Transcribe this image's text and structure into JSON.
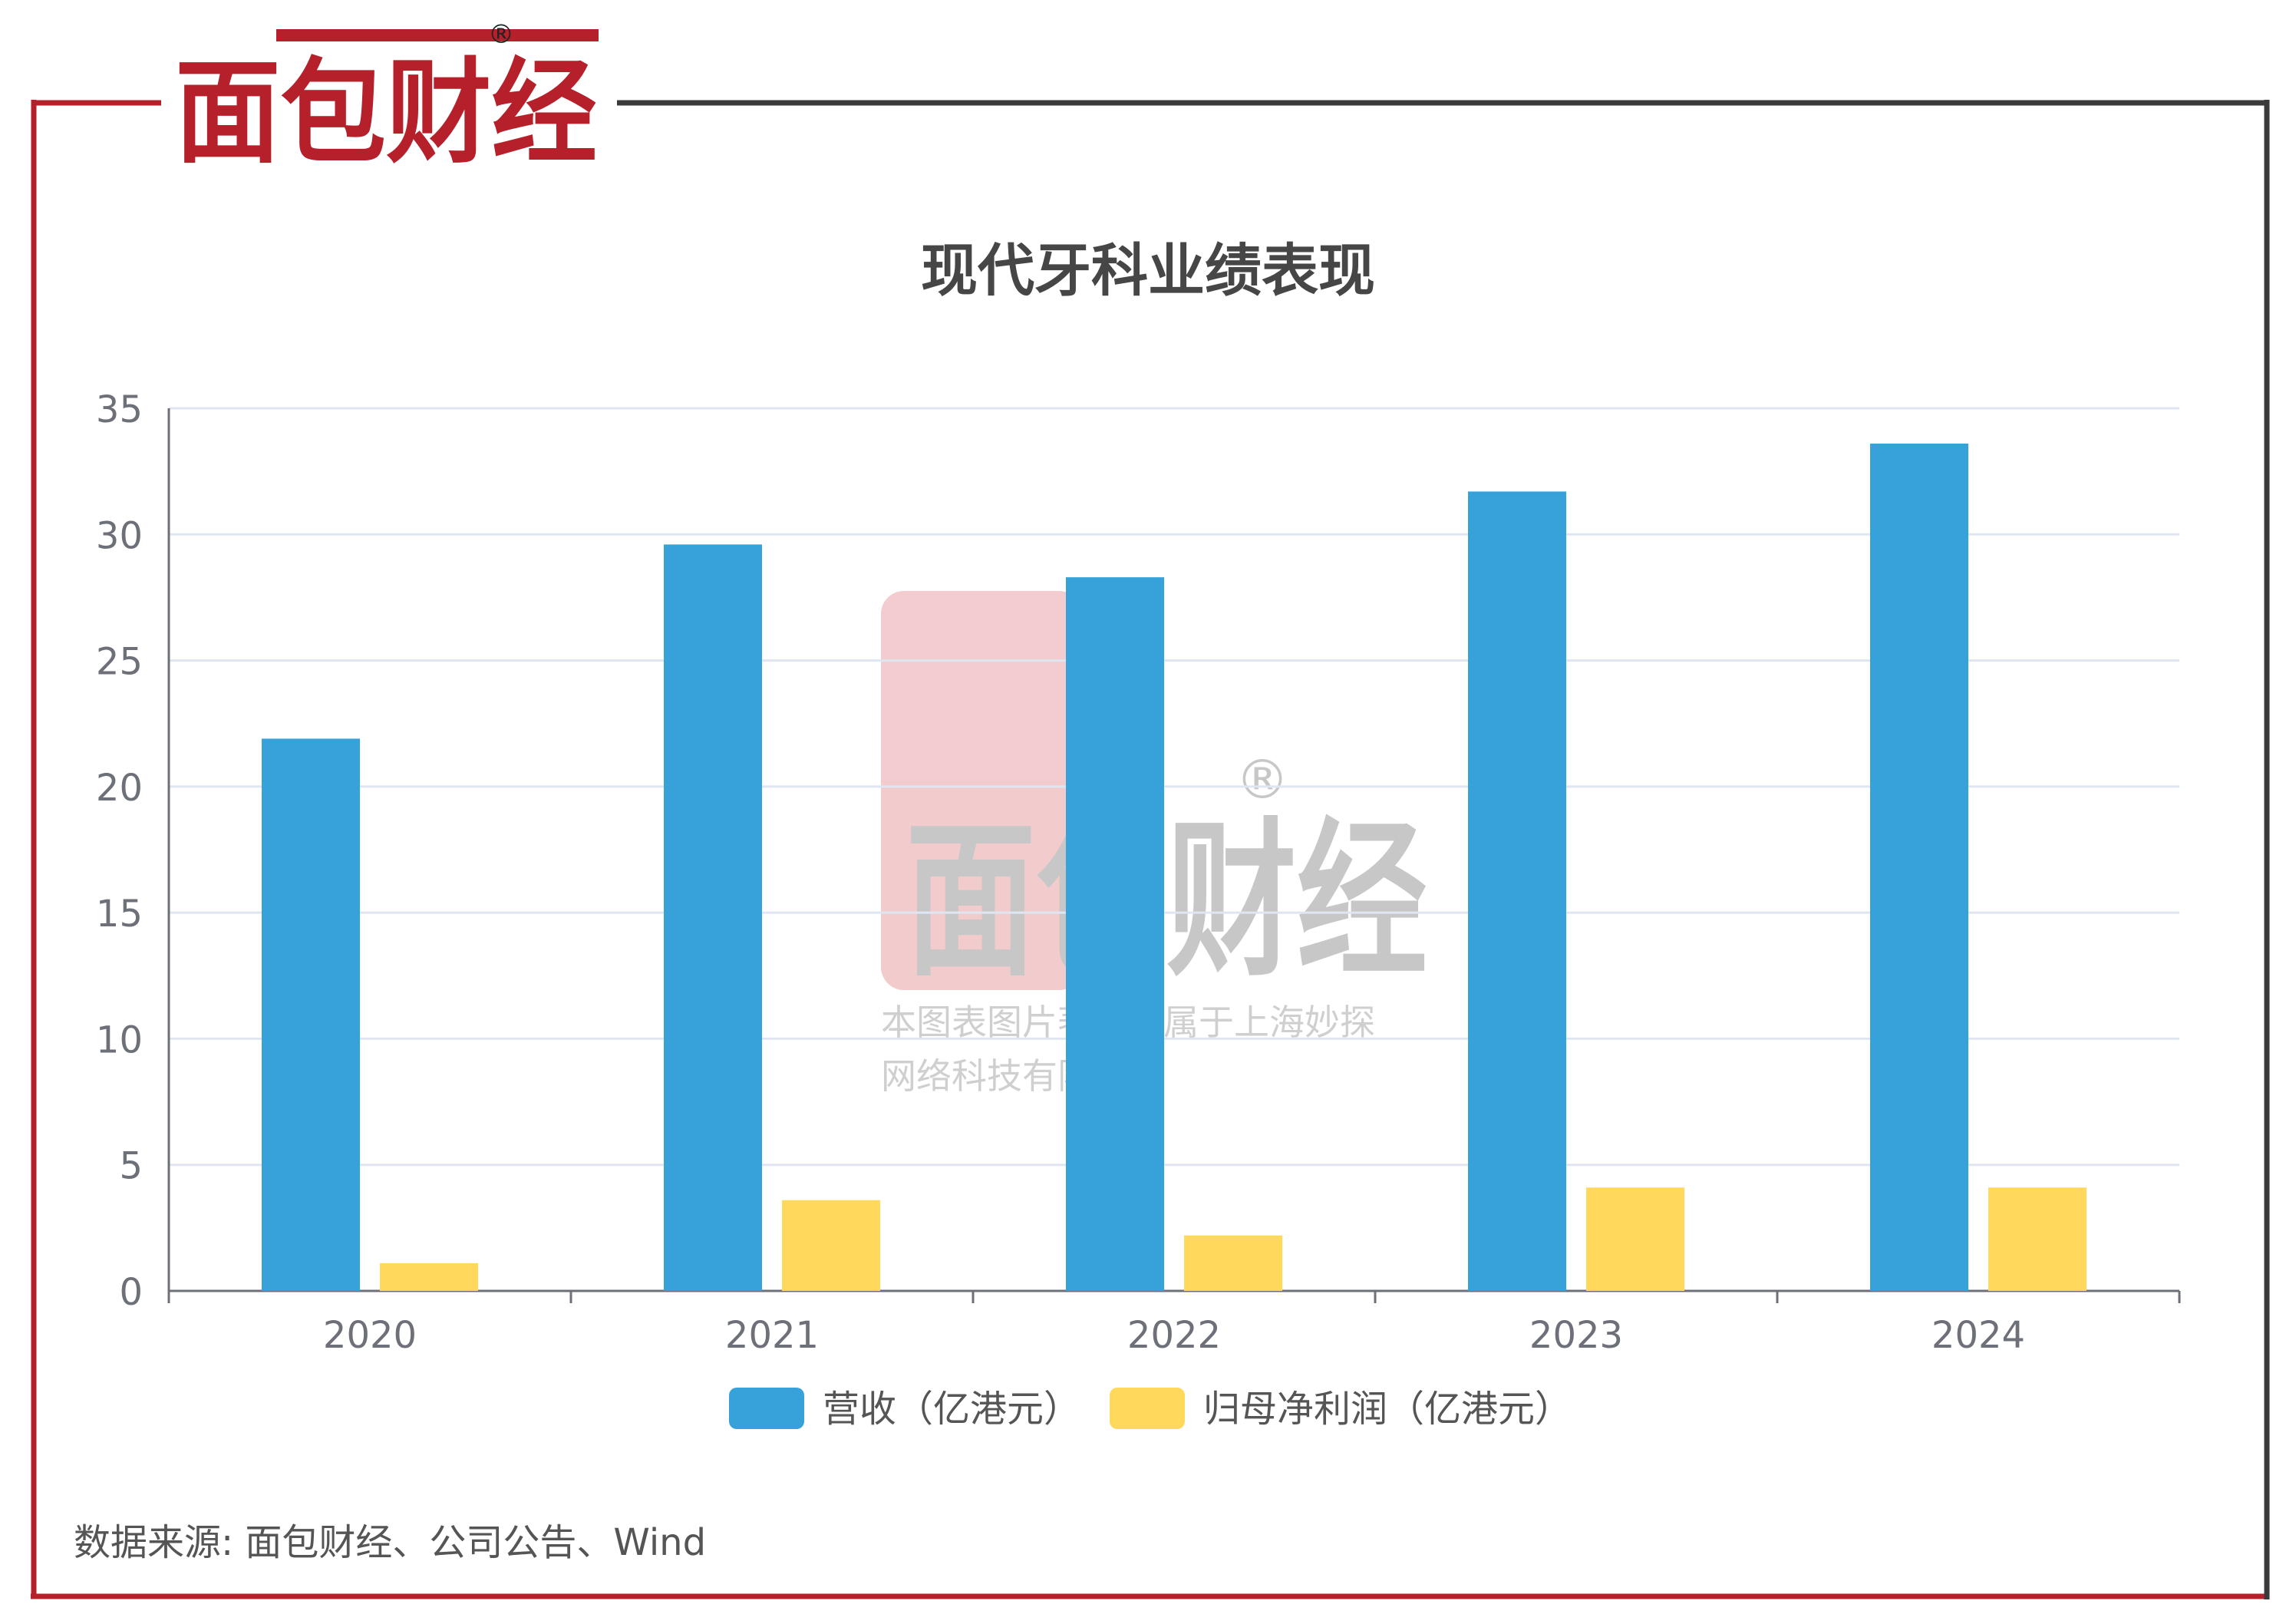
{
  "brand": {
    "logo_text": "面包财经",
    "registered_mark": "®",
    "watermark_line1": "本图表图片著作权属于上海妙探",
    "watermark_line2": "网络科技有限公司"
  },
  "colors": {
    "brand_red": "#b5202a",
    "frame_dark": "#3a3a3a",
    "revenue": "#37a2da",
    "profit": "#ffd85c",
    "axis": "#6e7079",
    "grid": "#e0e6f1",
    "text": "#6e7079",
    "title": "#464646"
  },
  "chart_data": {
    "type": "bar",
    "title": "现代牙科业绩表现",
    "categories": [
      "2020",
      "2021",
      "2022",
      "2023",
      "2024"
    ],
    "series": [
      {
        "name": "营收（亿港元）",
        "values": [
          21.9,
          29.6,
          28.3,
          31.7,
          33.6
        ]
      },
      {
        "name": "归母净利润（亿港元）",
        "values": [
          1.1,
          3.6,
          2.2,
          4.1,
          4.1
        ]
      }
    ],
    "ylim": [
      0,
      35
    ],
    "yticks": [
      "0",
      "5",
      "10",
      "15",
      "20",
      "25",
      "30",
      "35"
    ],
    "grid": true,
    "legend_position": "bottom-center"
  },
  "source_note": "数据来源: 面包财经、公司公告、Wind"
}
